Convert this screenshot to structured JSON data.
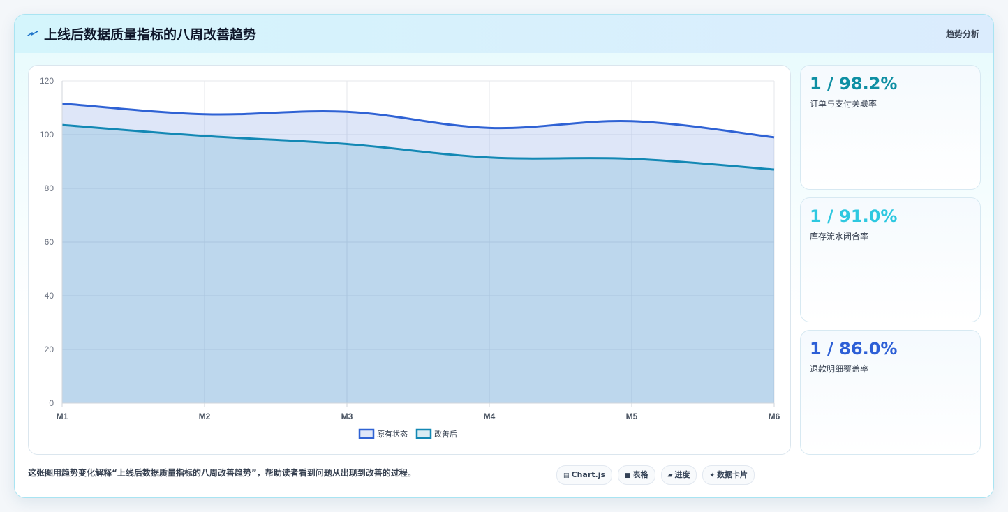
{
  "header": {
    "icon": "trend-icon",
    "title": "上线后数据质量指标的八周改善趋势",
    "tag": "趋势分析"
  },
  "colors": {
    "series_original": "#2f62d4",
    "series_improved": "#1388b4",
    "kpi_1": "#0e8fa3",
    "kpi_2": "#2ec8e0",
    "kpi_3": "#2d5fd6"
  },
  "kpis": [
    {
      "value": "1 / 98.2%",
      "label": "订单与支付关联率"
    },
    {
      "value": "1 / 91.0%",
      "label": "库存流水闭合率"
    },
    {
      "value": "1 / 86.0%",
      "label": "退款明细覆盖率"
    }
  ],
  "caption": "这张图用趋势变化解释“上线后数据质量指标的八周改善趋势”，帮助读者看到问题从出现到改善的过程。",
  "pills": [
    {
      "icon": "chart-icon",
      "glyph": "▤",
      "label": "Chart.js"
    },
    {
      "icon": "table-icon",
      "glyph": "■",
      "label": "表格"
    },
    {
      "icon": "progress-icon",
      "glyph": "▰",
      "label": "进度"
    },
    {
      "icon": "sparkle-icon",
      "glyph": "✦",
      "label": "数据卡片"
    }
  ],
  "chart_data": {
    "type": "area",
    "categories": [
      "M1",
      "M2",
      "M3",
      "M4",
      "M5",
      "M6"
    ],
    "series": [
      {
        "name": "原有状态",
        "values": [
          111.6,
          107.6,
          108.5,
          102.5,
          105.0,
          99.0
        ]
      },
      {
        "name": "改善后",
        "values": [
          103.6,
          99.5,
          96.5,
          91.5,
          91.0,
          87.0
        ]
      }
    ],
    "ylim": [
      0,
      120
    ],
    "yticks": [
      0,
      20,
      40,
      60,
      80,
      100,
      120
    ],
    "grid": true,
    "legend": "bottom"
  }
}
